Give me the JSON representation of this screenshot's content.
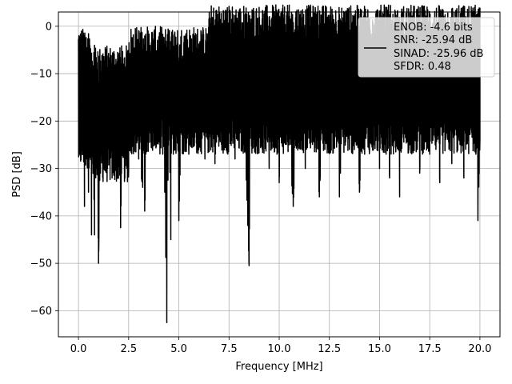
{
  "chart_data": {
    "type": "line",
    "title": "",
    "xlabel": "Frequency [MHz]",
    "ylabel": "PSD [dB]",
    "xlim": [
      -1.0,
      21.0
    ],
    "ylim": [
      -65.5,
      3.0
    ],
    "grid": true,
    "line_color": "#000000",
    "x_ticks": [
      0.0,
      2.5,
      5.0,
      7.5,
      10.0,
      12.5,
      15.0,
      17.5,
      20.0
    ],
    "x_tick_labels": [
      "0.0",
      "2.5",
      "5.0",
      "7.5",
      "10.0",
      "12.5",
      "15.0",
      "17.5",
      "20.0"
    ],
    "y_ticks": [
      0,
      -10,
      -20,
      -30,
      -40,
      -50,
      -60
    ],
    "y_tick_labels": [
      "0",
      "−10",
      "−20",
      "−30",
      "−40",
      "−50",
      "−60"
    ],
    "legend": {
      "position": "upper-right",
      "entries": [
        "ENOB: -4.6 bits",
        "SNR: -25.94 dB",
        "SINAD: -25.96 dB",
        "SFDR: 0.48"
      ]
    },
    "series": [
      {
        "x_range": [
          0.0,
          20.0
        ],
        "description_points": [
          [
            0.0,
            -5
          ],
          [
            0.02,
            -2
          ],
          [
            0.05,
            -27
          ],
          [
            0.1,
            -7
          ],
          [
            0.15,
            -15
          ],
          [
            0.2,
            -25
          ],
          [
            0.25,
            -20
          ],
          [
            0.3,
            -38
          ],
          [
            0.4,
            -13
          ],
          [
            0.5,
            -35
          ],
          [
            0.6,
            -17
          ],
          [
            0.65,
            -44
          ],
          [
            0.7,
            -14
          ],
          [
            0.8,
            -44
          ],
          [
            0.9,
            -18
          ],
          [
            1.0,
            -50
          ],
          [
            1.1,
            -20
          ],
          [
            1.3,
            -12
          ],
          [
            1.5,
            -24
          ],
          [
            1.8,
            -13
          ],
          [
            2.0,
            -23
          ],
          [
            2.1,
            -42.5
          ],
          [
            2.2,
            -15
          ],
          [
            2.5,
            -30
          ],
          [
            2.8,
            -11
          ],
          [
            3.0,
            -28
          ],
          [
            3.2,
            -34
          ],
          [
            3.3,
            -39
          ],
          [
            3.5,
            -11
          ],
          [
            3.8,
            -25
          ],
          [
            4.0,
            -9
          ],
          [
            4.2,
            -27
          ],
          [
            4.3,
            -35
          ],
          [
            4.4,
            -62.5
          ],
          [
            4.5,
            -11
          ],
          [
            4.6,
            -45
          ],
          [
            4.7,
            -15
          ],
          [
            5.0,
            -41
          ],
          [
            5.2,
            -8
          ],
          [
            5.5,
            -27
          ],
          [
            5.7,
            -6
          ],
          [
            6.0,
            -25
          ],
          [
            6.3,
            -28
          ],
          [
            6.5,
            -7
          ],
          [
            6.8,
            -29
          ],
          [
            7.0,
            -5
          ],
          [
            7.2,
            -26
          ],
          [
            7.5,
            -3
          ],
          [
            7.8,
            -28
          ],
          [
            8.0,
            -6
          ],
          [
            8.3,
            -25
          ],
          [
            8.5,
            -50.5
          ],
          [
            8.6,
            -4
          ],
          [
            8.9,
            -24
          ],
          [
            9.2,
            -5
          ],
          [
            9.5,
            -30
          ],
          [
            9.7,
            -4
          ],
          [
            10.0,
            -33
          ],
          [
            10.2,
            -3
          ],
          [
            10.5,
            -25
          ],
          [
            10.7,
            -38
          ],
          [
            11.0,
            -4
          ],
          [
            11.3,
            -30
          ],
          [
            11.5,
            -3
          ],
          [
            12.0,
            -36
          ],
          [
            12.3,
            -5
          ],
          [
            12.5,
            -25
          ],
          [
            12.8,
            -3
          ],
          [
            13.0,
            -36
          ],
          [
            13.3,
            -6
          ],
          [
            13.5,
            -26
          ],
          [
            13.7,
            -3
          ],
          [
            14.0,
            -35
          ],
          [
            14.3,
            -5
          ],
          [
            14.5,
            -26
          ],
          [
            14.7,
            -3
          ],
          [
            15.0,
            -30
          ],
          [
            15.2,
            -5
          ],
          [
            15.5,
            -32
          ],
          [
            15.8,
            -4
          ],
          [
            16.0,
            -36
          ],
          [
            16.3,
            -6
          ],
          [
            16.5,
            -25
          ],
          [
            16.8,
            -4
          ],
          [
            17.0,
            -31
          ],
          [
            17.3,
            -6
          ],
          [
            17.5,
            -27
          ],
          [
            17.8,
            -5
          ],
          [
            18.0,
            -33
          ],
          [
            18.3,
            -8
          ],
          [
            18.6,
            -29
          ],
          [
            18.9,
            -6
          ],
          [
            19.2,
            -32
          ],
          [
            19.5,
            -8
          ],
          [
            19.8,
            -27
          ],
          [
            19.9,
            -41
          ],
          [
            20.0,
            -24
          ]
        ]
      }
    ]
  }
}
